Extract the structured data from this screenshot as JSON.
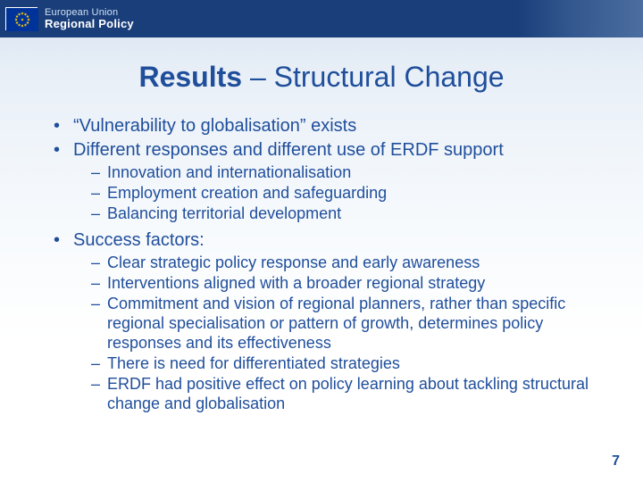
{
  "colors": {
    "banner_bg": "#1a3e7a",
    "text_primary": "#1f4e9b",
    "flag_bg": "#003399",
    "flag_star": "#ffcc00",
    "bg_gradient_top": "#d6e2f0",
    "bg_gradient_bottom": "#ffffff"
  },
  "typography": {
    "title_fontsize": 32,
    "level1_fontsize": 20,
    "level2_fontsize": 18,
    "page_num_fontsize": 16,
    "font_family": "Arial"
  },
  "banner": {
    "org_line1": "European Union",
    "org_line2": "Regional Policy"
  },
  "title": {
    "bold_part": "Results",
    "separator": " – ",
    "normal_part": "Structural Change"
  },
  "bullets": [
    {
      "text": "“Vulnerability to globalisation” exists",
      "children": []
    },
    {
      "text": "Different responses and different use of ERDF support",
      "children": [
        "Innovation and internationalisation",
        "Employment creation and safeguarding",
        "Balancing territorial development"
      ]
    },
    {
      "text": "Success factors:",
      "children": [
        "Clear strategic policy response and early awareness",
        "Interventions aligned with a broader regional strategy",
        "Commitment and vision of regional planners, rather than specific regional specialisation or pattern of growth, determines policy responses and its effectiveness",
        "There is need for differentiated strategies",
        "ERDF had positive effect on policy learning about tackling structural change and globalisation"
      ]
    }
  ],
  "page_number": "7"
}
